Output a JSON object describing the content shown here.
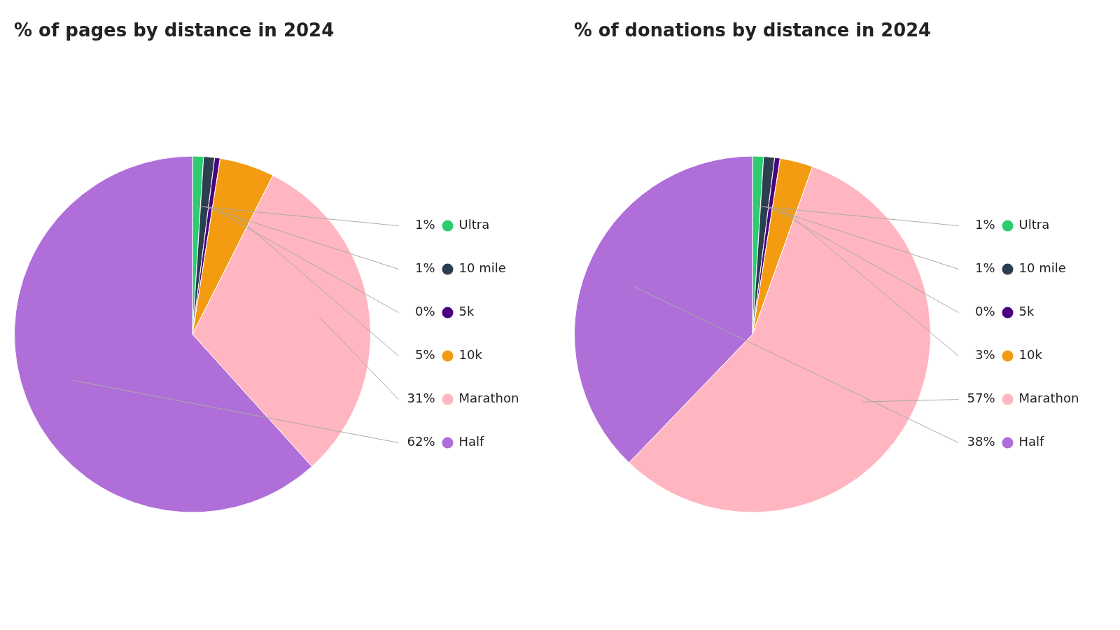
{
  "chart_data": [
    {
      "type": "pie",
      "title": "% of pages by distance in 2024",
      "categories": [
        "Ultra",
        "10 mile",
        "5k",
        "10k",
        "Marathon",
        "Half"
      ],
      "values": [
        1,
        1,
        0.5,
        5,
        31,
        62
      ],
      "value_labels": [
        "1%",
        "1%",
        "0%",
        "5%",
        "31%",
        "62%"
      ],
      "colors": [
        "#2ecc71",
        "#2c3e50",
        "#4b0082",
        "#f39c12",
        "#ffb6c1",
        "#b06fd8"
      ],
      "data_labels": true
    },
    {
      "type": "pie",
      "title": "% of donations by distance in 2024",
      "categories": [
        "Ultra",
        "10 mile",
        "5k",
        "10k",
        "Marathon",
        "Half"
      ],
      "values": [
        1,
        1,
        0.5,
        3,
        57,
        38
      ],
      "value_labels": [
        "1%",
        "1%",
        "0%",
        "3%",
        "57%",
        "38%"
      ],
      "colors": [
        "#2ecc71",
        "#2c3e50",
        "#4b0082",
        "#f39c12",
        "#ffb6c1",
        "#b06fd8"
      ],
      "data_labels": true
    }
  ]
}
